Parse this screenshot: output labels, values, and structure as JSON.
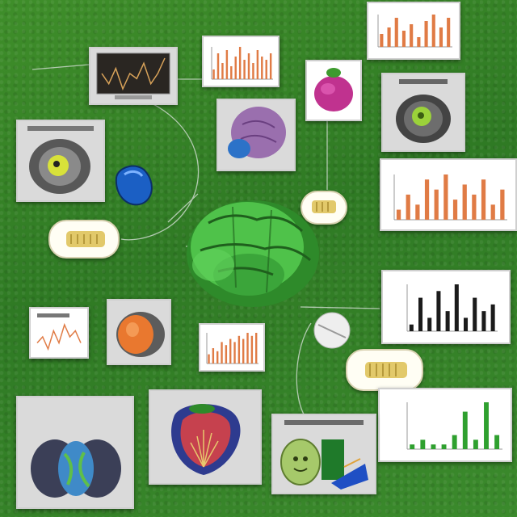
{
  "scene": {
    "description_free_layout": true,
    "background_color": "#3a8a2b",
    "accent_colors": {
      "chart_orange": "#e07b45",
      "chart_black": "#1b1b1b",
      "chart_green": "#2fa02f",
      "brain_green": "#4fc24a",
      "connector": "#c8d7c8"
    }
  },
  "labels": {
    "card_top_left_caption": "",
    "card_left_organ_caption": "",
    "card_bottom_left_title_line1": "",
    "card_bottom_left_title_line2": "",
    "card_right_organ_caption": "",
    "card_bottom_center_caption": "",
    "card_right_bottom_caption": ""
  },
  "icons": [
    "monitor-chart-icon",
    "bar-chart-icon",
    "cell-organ-icon",
    "blue-stone-icon",
    "magenta-organ-icon",
    "purple-lung-icon",
    "green-brain-icon",
    "seed-capsule-icon",
    "pie-disc-icon",
    "orange-organ-icon",
    "heart-organ-icon",
    "fruit-face-icon",
    "kidney-organ-icon"
  ],
  "chart_data": [
    {
      "type": "bar",
      "values": [
        3,
        8,
        5,
        9,
        4,
        7,
        10,
        6,
        8,
        5,
        9,
        7,
        6,
        8
      ],
      "color": "#e07b45"
    },
    {
      "type": "bar",
      "values": [
        4,
        6,
        9,
        5,
        7,
        3,
        8,
        10,
        6,
        9
      ],
      "color": "#e07b45"
    },
    {
      "type": "bar",
      "values": [
        2,
        5,
        3,
        8,
        6,
        9,
        4,
        7,
        5,
        8,
        3,
        6
      ],
      "color": "#e07b45"
    },
    {
      "type": "bar",
      "values": [
        3,
        5,
        4,
        7,
        6,
        8,
        7,
        9,
        8,
        10,
        9,
        10
      ],
      "color": "#e07b45"
    },
    {
      "type": "bar",
      "values": [
        1,
        5,
        2,
        6,
        3,
        7,
        2,
        5,
        3,
        4
      ],
      "color": "#1b1b1b"
    },
    {
      "type": "bar",
      "values": [
        1,
        2,
        1,
        1,
        3,
        8,
        2,
        10,
        3
      ],
      "color": "#2fa02f"
    },
    {
      "type": "line",
      "values": [
        6,
        4,
        7,
        3,
        6,
        5,
        8,
        4,
        6,
        9
      ],
      "color": "#d9a35a"
    },
    {
      "type": "line",
      "values": [
        4,
        5,
        3,
        6,
        4,
        7,
        5,
        6,
        4
      ],
      "color": "#e07b45"
    }
  ]
}
